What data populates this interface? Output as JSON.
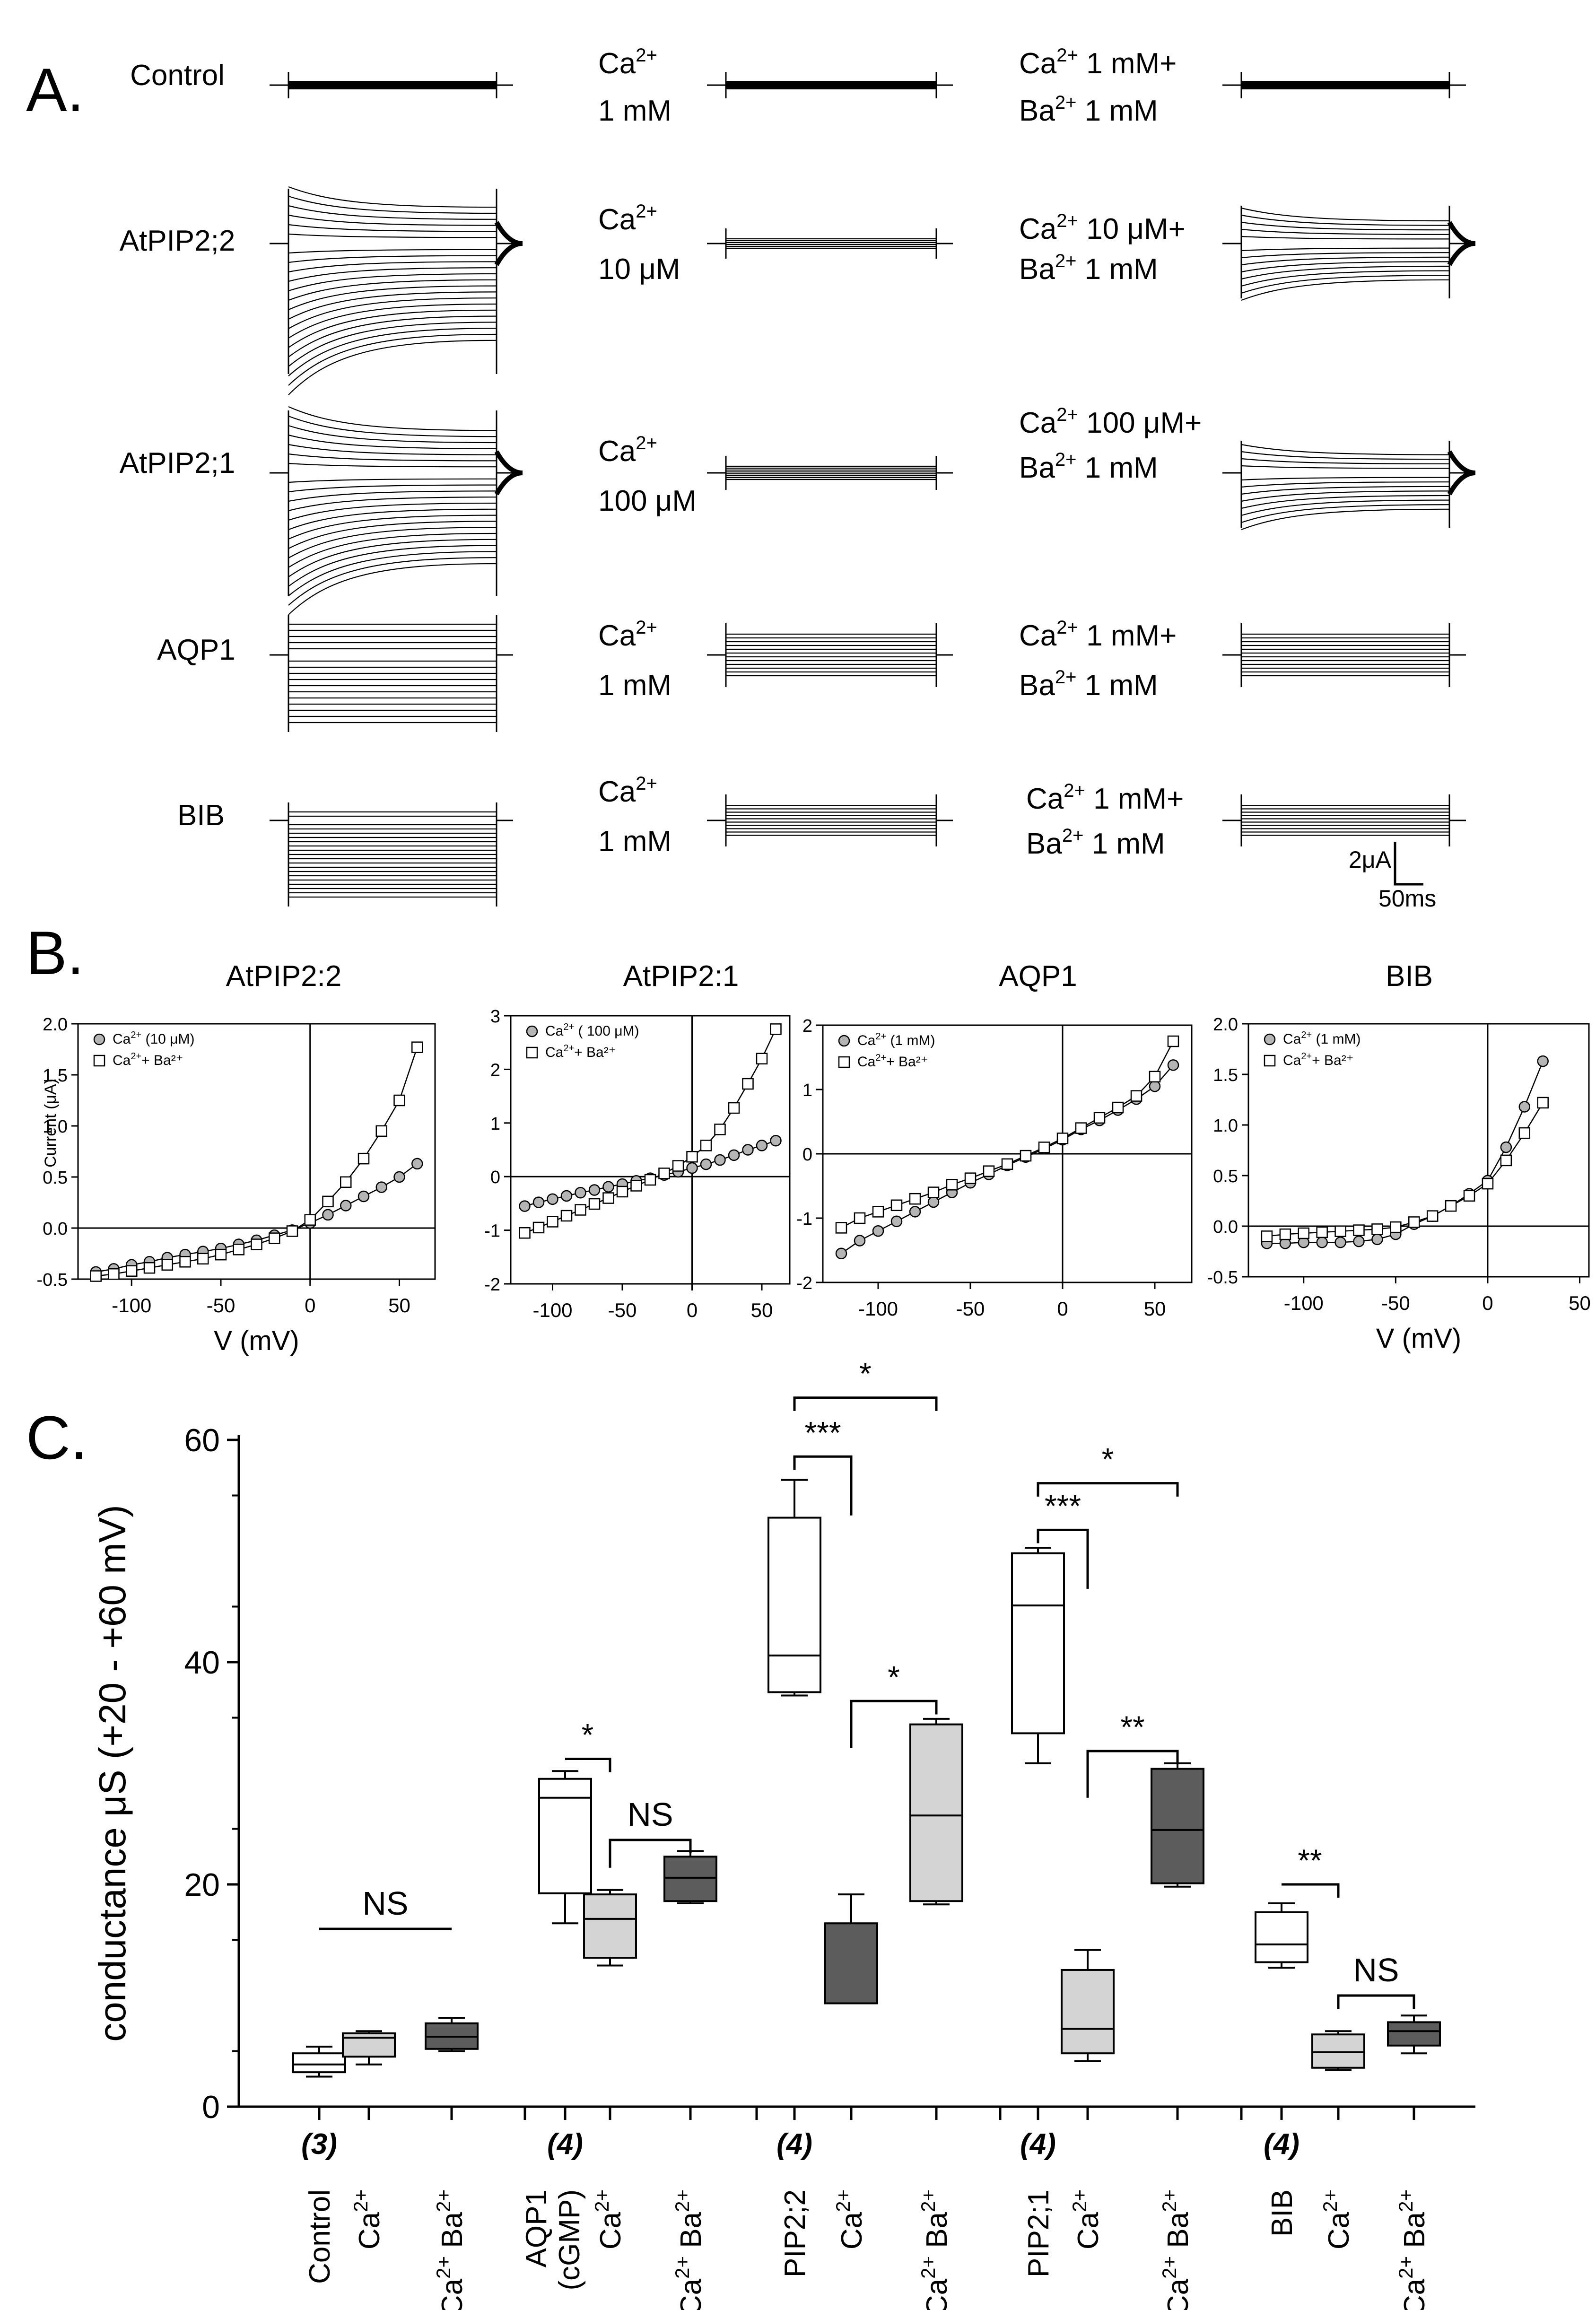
{
  "panel_a": {
    "letter": "A.",
    "scale_bar": {
      "current": "2μA",
      "time": "50ms"
    },
    "rows": [
      {
        "label": "Control",
        "mid": {
          "ion": "Ca",
          "sup": "2+",
          "conc": "1 mM"
        },
        "right": {
          "l1": "Ca",
          "s1": "2+",
          "t1": " 1 mM+",
          "l2": "Ba",
          "s2": "2+",
          "t2": "  1 mM"
        }
      },
      {
        "label": "AtPIP2;2",
        "mid": {
          "ion": "Ca",
          "sup": "2+",
          "conc": "10 μM"
        },
        "right": {
          "l1": "Ca",
          "s1": "2+",
          "t1": "  10 μM+",
          "l2": "Ba",
          "s2": "2+",
          "t2": " 1 mM"
        }
      },
      {
        "label": "AtPIP2;1",
        "mid": {
          "ion": "Ca",
          "sup": "2+",
          "conc": "100 μM"
        },
        "right": {
          "l1": "Ca",
          "s1": "2+",
          "t1": " 100 μM+",
          "l2": "Ba",
          "s2": "2+",
          "t2": "  1 mM"
        }
      },
      {
        "label": "AQP1",
        "mid": {
          "ion": "Ca",
          "sup": "2+",
          "conc": "1 mM"
        },
        "right": {
          "l1": "Ca",
          "s1": "2+",
          "t1": " 1 mM+",
          "l2": "Ba",
          "s2": "2+",
          "t2": "  1 mM"
        }
      },
      {
        "label": "BIB",
        "mid": {
          "ion": "Ca",
          "sup": "2+",
          "conc": "1 mM"
        },
        "right": {
          "l1": "Ca",
          "s1": "2+",
          "t1": " 1 mM+",
          "l2": "Ba",
          "s2": "2+",
          "t2": "  1 mM"
        }
      }
    ]
  },
  "panel_b": {
    "letter": "B."
  },
  "panel_c": {
    "letter": "C."
  },
  "chart_data": [
    {
      "type": "scatter",
      "title": "AtPIP2:2",
      "xlabel": "V (mV)",
      "ylabel": "Current (μA)",
      "xlim": [
        -130,
        70
      ],
      "ylim": [
        -0.5,
        2.0
      ],
      "xticks": [
        -100,
        -50,
        0,
        50
      ],
      "yticks": [
        -0.5,
        0.0,
        0.5,
        1.0,
        1.5,
        2.0
      ],
      "ytick_labels": [
        "-0.5",
        "0.0",
        "0.5",
        "1.0",
        "1.5",
        "2.0"
      ],
      "series": [
        {
          "name": "Ca",
          "sup": "2+",
          "suffix": " (10 μM)",
          "marker": "circle",
          "x": [
            -120,
            -110,
            -100,
            -90,
            -80,
            -70,
            -60,
            -50,
            -40,
            -30,
            -20,
            -10,
            0,
            10,
            20,
            30,
            40,
            50,
            60
          ],
          "y": [
            -0.43,
            -0.4,
            -0.36,
            -0.33,
            -0.29,
            -0.26,
            -0.23,
            -0.2,
            -0.16,
            -0.12,
            -0.07,
            -0.02,
            0.05,
            0.13,
            0.22,
            0.31,
            0.4,
            0.5,
            0.63
          ]
        },
        {
          "name": "Ca",
          "sup": "2+",
          "suffix": "+ Ba²⁺",
          "marker": "square",
          "x": [
            -120,
            -110,
            -100,
            -90,
            -80,
            -70,
            -60,
            -50,
            -40,
            -30,
            -20,
            -10,
            0,
            10,
            20,
            30,
            40,
            50,
            60
          ],
          "y": [
            -0.47,
            -0.45,
            -0.42,
            -0.39,
            -0.36,
            -0.33,
            -0.3,
            -0.26,
            -0.21,
            -0.16,
            -0.1,
            -0.03,
            0.08,
            0.26,
            0.45,
            0.68,
            0.95,
            1.25,
            1.77
          ]
        }
      ]
    },
    {
      "type": "scatter",
      "title": "AtPIP2:1",
      "xlabel": "",
      "ylabel": "",
      "xlim": [
        -130,
        70
      ],
      "ylim": [
        -2,
        3
      ],
      "xticks": [
        -100,
        -50,
        0,
        50
      ],
      "yticks": [
        -2,
        -1,
        0,
        1,
        2,
        3
      ],
      "ytick_labels": [
        "-2",
        "-1",
        "0",
        "1",
        "2",
        "3"
      ],
      "series": [
        {
          "name": "Ca",
          "sup": "2+",
          "suffix": " ( 100 μM)",
          "marker": "circle",
          "x": [
            -120,
            -110,
            -100,
            -90,
            -80,
            -70,
            -60,
            -50,
            -40,
            -30,
            -20,
            -10,
            0,
            10,
            20,
            30,
            40,
            50,
            60
          ],
          "y": [
            -0.55,
            -0.48,
            -0.42,
            -0.36,
            -0.3,
            -0.25,
            -0.19,
            -0.14,
            -0.08,
            -0.03,
            0.03,
            0.09,
            0.16,
            0.23,
            0.31,
            0.4,
            0.5,
            0.58,
            0.67
          ]
        },
        {
          "name": "Ca",
          "sup": "2+",
          "suffix": "+ Ba²⁺",
          "marker": "square",
          "x": [
            -120,
            -110,
            -100,
            -90,
            -80,
            -70,
            -60,
            -50,
            -40,
            -30,
            -20,
            -10,
            0,
            10,
            20,
            30,
            40,
            50,
            60
          ],
          "y": [
            -1.05,
            -0.95,
            -0.84,
            -0.73,
            -0.62,
            -0.51,
            -0.4,
            -0.28,
            -0.17,
            -0.06,
            0.06,
            0.2,
            0.37,
            0.58,
            0.88,
            1.28,
            1.73,
            2.2,
            2.75
          ]
        }
      ]
    },
    {
      "type": "scatter",
      "title": "AQP1",
      "xlabel": "",
      "ylabel": "",
      "xlim": [
        -130,
        70
      ],
      "ylim": [
        -2,
        2
      ],
      "xticks": [
        -100,
        -50,
        0,
        50
      ],
      "yticks": [
        -2,
        -1,
        0,
        1,
        2
      ],
      "ytick_labels": [
        "-2",
        "-1",
        "0",
        "1",
        "2"
      ],
      "series": [
        {
          "name": "Ca",
          "sup": "2+",
          "suffix": " (1 mM)",
          "marker": "circle",
          "x": [
            -120,
            -110,
            -100,
            -90,
            -80,
            -70,
            -60,
            -50,
            -40,
            -30,
            -20,
            -10,
            0,
            10,
            20,
            30,
            40,
            50,
            60
          ],
          "y": [
            -1.55,
            -1.35,
            -1.2,
            -1.05,
            -0.9,
            -0.75,
            -0.6,
            -0.45,
            -0.32,
            -0.18,
            -0.05,
            0.08,
            0.22,
            0.38,
            0.52,
            0.68,
            0.85,
            1.05,
            1.38
          ]
        },
        {
          "name": "Ca",
          "sup": "2+",
          "suffix": "+ Ba²⁺",
          "marker": "square",
          "x": [
            -120,
            -110,
            -100,
            -90,
            -80,
            -70,
            -60,
            -50,
            -40,
            -30,
            -20,
            -10,
            0,
            10,
            20,
            30,
            40,
            50,
            60
          ],
          "y": [
            -1.15,
            -1.0,
            -0.9,
            -0.8,
            -0.7,
            -0.6,
            -0.48,
            -0.38,
            -0.27,
            -0.16,
            -0.03,
            0.1,
            0.24,
            0.4,
            0.56,
            0.72,
            0.9,
            1.2,
            1.75
          ]
        }
      ]
    },
    {
      "type": "scatter",
      "title": "BIB",
      "xlabel": "V (mV)",
      "ylabel": "",
      "xlim": [
        -130,
        55
      ],
      "ylim": [
        -0.5,
        2.0
      ],
      "xticks": [
        -100,
        -50,
        0,
        50
      ],
      "yticks": [
        -0.5,
        0.0,
        0.5,
        1.0,
        1.5,
        2.0
      ],
      "ytick_labels": [
        "-0.5",
        "0.0",
        "0.5",
        "1.0",
        "1.5",
        "2.0"
      ],
      "series": [
        {
          "name": "Ca",
          "sup": "2+",
          "suffix": " (1 mM)",
          "marker": "circle",
          "x": [
            -120,
            -110,
            -100,
            -90,
            -80,
            -70,
            -60,
            -50,
            -40,
            -30,
            -20,
            -10,
            0,
            10,
            20,
            30
          ],
          "y": [
            -0.17,
            -0.17,
            -0.16,
            -0.16,
            -0.16,
            -0.15,
            -0.13,
            -0.08,
            0.02,
            0.1,
            0.2,
            0.32,
            0.45,
            0.78,
            1.18,
            1.63
          ]
        },
        {
          "name": "Ca",
          "sup": "2+",
          "suffix": "+ Ba²⁺",
          "marker": "square",
          "x": [
            -120,
            -110,
            -100,
            -90,
            -80,
            -70,
            -60,
            -50,
            -40,
            -30,
            -20,
            -10,
            0,
            10,
            20,
            30
          ],
          "y": [
            -0.1,
            -0.08,
            -0.07,
            -0.06,
            -0.05,
            -0.04,
            -0.03,
            -0.01,
            0.04,
            0.1,
            0.2,
            0.3,
            0.42,
            0.65,
            0.92,
            1.22
          ]
        }
      ]
    },
    {
      "type": "box",
      "title": "",
      "ylabel": "conductance μS (+20 - +60 mV)",
      "ylim": [
        0,
        60
      ],
      "yticks": [
        0,
        20,
        40,
        60
      ],
      "groups": [
        {
          "n": "(3)",
          "boxes": [
            {
              "label": "Control",
              "shade": "white",
              "min": 2.7,
              "q1": 3.1,
              "median": 3.8,
              "q3": 4.8,
              "max": 5.4
            },
            {
              "label": "Ca",
              "sup": "2+",
              "shade": "light",
              "min": 3.8,
              "q1": 4.5,
              "median": 6.2,
              "q3": 6.6,
              "max": 6.8
            },
            {
              "label": "Ca",
              "sup": "2+",
              "label2": " Ba",
              "sup2": "2+",
              "shade": "dark",
              "min": 5.0,
              "q1": 5.2,
              "median": 6.3,
              "q3": 7.5,
              "max": 8.0
            }
          ]
        },
        {
          "n": "(4)",
          "boxes": [
            {
              "label": "AQP1",
              "label_b": "(cGMP)",
              "shade": "white",
              "min": 16.5,
              "q1": 19.2,
              "median": 27.8,
              "q3": 29.5,
              "max": 30.2
            },
            {
              "label": "Ca",
              "sup": "2+",
              "shade": "light",
              "min": 12.7,
              "q1": 13.4,
              "median": 16.9,
              "q3": 19.1,
              "max": 19.5
            },
            {
              "label": "Ca",
              "sup": "2+",
              "label2": " Ba",
              "sup2": "2+",
              "shade": "dark",
              "min": 18.3,
              "q1": 18.5,
              "median": 20.6,
              "q3": 22.5,
              "max": 23.0
            }
          ]
        },
        {
          "n": "(4)",
          "boxes": [
            {
              "label": "PIP2;2",
              "shade": "white",
              "min": 37.0,
              "q1": 37.3,
              "median": 40.6,
              "q3": 53.0,
              "max": 56.4
            },
            {
              "label": "Ca",
              "sup": "2+",
              "shade": "dark",
              "min": 9.3,
              "q1": 9.3,
              "median": 9.3,
              "q3": 16.5,
              "max": 19.1
            },
            {
              "label": "Ca",
              "sup": "2+",
              "label2": " Ba",
              "sup2": "2+",
              "shade": "light",
              "min": 18.2,
              "q1": 18.5,
              "median": 26.2,
              "q3": 34.4,
              "max": 34.9
            }
          ]
        },
        {
          "n": "(4)",
          "boxes": [
            {
              "label": "PIP2;1",
              "shade": "white",
              "min": 30.9,
              "q1": 33.6,
              "median": 45.1,
              "q3": 49.8,
              "max": 50.3
            },
            {
              "label": "Ca",
              "sup": "2+",
              "shade": "light",
              "min": 4.1,
              "q1": 4.8,
              "median": 7.0,
              "q3": 12.3,
              "max": 14.1
            },
            {
              "label": "Ca",
              "sup": "2+",
              "label2": " Ba",
              "sup2": "2+",
              "shade": "dark",
              "min": 19.8,
              "q1": 20.1,
              "median": 24.9,
              "q3": 30.4,
              "max": 30.9
            }
          ]
        },
        {
          "n": "(4)",
          "boxes": [
            {
              "label": "BIB",
              "shade": "white",
              "min": 12.5,
              "q1": 13.0,
              "median": 14.6,
              "q3": 17.5,
              "max": 18.3
            },
            {
              "label": "Ca",
              "sup": "2+",
              "shade": "light",
              "min": 3.3,
              "q1": 3.5,
              "median": 4.9,
              "q3": 6.5,
              "max": 6.8
            },
            {
              "label": "Ca",
              "sup": "2+",
              "label2": " Ba",
              "sup2": "2+",
              "shade": "dark",
              "min": 4.8,
              "q1": 5.5,
              "median": 6.8,
              "q3": 7.6,
              "max": 8.2
            }
          ]
        }
      ],
      "significance": [
        {
          "g": 0,
          "from": 0,
          "to": 2,
          "y": 16.0,
          "drop_left": 0,
          "drop_right": 0,
          "label": "NS"
        },
        {
          "g": 1,
          "from": 0,
          "to": 1,
          "y": 31.3,
          "drop_left": 0,
          "drop_right": 1.2,
          "label": "*"
        },
        {
          "g": 1,
          "from": 1,
          "to": 2,
          "y": 24.0,
          "drop_left": 2.5,
          "drop_right": 1.2,
          "label": "NS"
        },
        {
          "g": 2,
          "from": 0,
          "to": 1,
          "y": 58.5,
          "drop_left": 1.2,
          "drop_right": 5.3,
          "label": "***"
        },
        {
          "g": 2,
          "from": 0,
          "to": 2,
          "y": 63.8,
          "drop_left": 1.2,
          "drop_right": 1.2,
          "label": "*"
        },
        {
          "g": 2,
          "from": 1,
          "to": 2,
          "y": 36.5,
          "drop_left": 4.2,
          "drop_right": 1.2,
          "label": "*"
        },
        {
          "g": 3,
          "from": 0,
          "to": 1,
          "y": 51.9,
          "drop_left": 1.2,
          "drop_right": 5.3,
          "label": "***"
        },
        {
          "g": 3,
          "from": 0,
          "to": 2,
          "y": 56.1,
          "drop_left": 1.2,
          "drop_right": 1.2,
          "label": "*"
        },
        {
          "g": 3,
          "from": 1,
          "to": 2,
          "y": 32.0,
          "drop_left": 4.2,
          "drop_right": 1.2,
          "label": "**"
        },
        {
          "g": 4,
          "from": 0,
          "to": 1,
          "y": 20.0,
          "drop_left": 0,
          "drop_right": 1.2,
          "label": "**"
        },
        {
          "g": 4,
          "from": 1,
          "to": 2,
          "y": 10.0,
          "drop_left": 1.2,
          "drop_right": 1.2,
          "label": "NS"
        }
      ]
    }
  ]
}
